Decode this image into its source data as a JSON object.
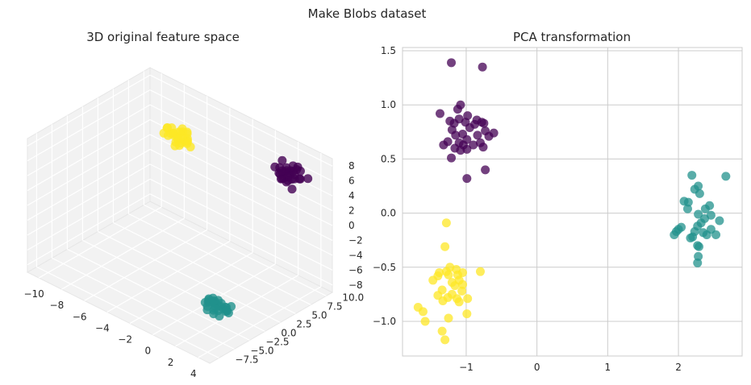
{
  "figure": {
    "title": "Make Blobs dataset"
  },
  "colors": {
    "cluster0": "#440154",
    "cluster1": "#21918c",
    "cluster2": "#fde725",
    "grid": "#cccccc",
    "pane": "#f2f2f2"
  },
  "chart_data": [
    {
      "type": "scatter",
      "projection": "3d",
      "title": "3D original feature space",
      "grid": true,
      "xticks": [
        "−10",
        "−8",
        "−6",
        "−4",
        "−2",
        "0",
        "2",
        "4"
      ],
      "yticks": [
        "−7.5",
        "−5.0",
        "−2.5",
        "0.0",
        "2.5",
        "5.0",
        "7.5",
        "10.0"
      ],
      "zticks": [
        "−8",
        "−6",
        "−4",
        "−2",
        "0",
        "2",
        "4",
        "6",
        "8"
      ],
      "xlim": [
        -11,
        5
      ],
      "ylim": [
        -9,
        11
      ],
      "zlim": [
        -9,
        9
      ],
      "series": [
        {
          "cluster": 0,
          "points": [
            [
              2.6,
              8.0,
              7.0
            ],
            [
              3.0,
              8.3,
              7.8
            ],
            [
              2.2,
              7.5,
              6.6
            ],
            [
              2.8,
              7.9,
              6.9
            ],
            [
              3.4,
              8.6,
              6.2
            ],
            [
              2.0,
              7.2,
              7.4
            ],
            [
              3.1,
              8.1,
              7.2
            ],
            [
              2.5,
              7.7,
              6.0
            ],
            [
              3.6,
              8.4,
              7.5
            ],
            [
              2.3,
              8.2,
              6.5
            ],
            [
              2.9,
              7.4,
              7.9
            ],
            [
              3.3,
              8.0,
              6.4
            ],
            [
              2.1,
              7.8,
              7.1
            ],
            [
              2.7,
              8.5,
              6.8
            ],
            [
              3.5,
              7.6,
              7.3
            ],
            [
              2.4,
              7.3,
              6.7
            ],
            [
              3.2,
              8.7,
              7.6
            ],
            [
              2.6,
              7.1,
              6.3
            ],
            [
              3.0,
              8.9,
              7.0
            ],
            [
              2.8,
              7.6,
              5.8
            ],
            [
              3.7,
              8.2,
              6.6
            ],
            [
              2.2,
              8.0,
              5.6
            ],
            [
              3.4,
              7.4,
              5.4
            ],
            [
              2.9,
              8.3,
              5.9
            ],
            [
              2.5,
              8.8,
              6.1
            ],
            [
              4.2,
              8.5,
              6.9
            ],
            [
              2.0,
              8.4,
              7.7
            ],
            [
              3.1,
              7.2,
              6.9
            ],
            [
              2.4,
              8.6,
              5.2
            ],
            [
              2.7,
              7.0,
              7.5
            ]
          ]
        },
        {
          "cluster": 1,
          "points": [
            [
              1.6,
              -2.0,
              -6.8
            ],
            [
              2.0,
              -1.7,
              -7.1
            ],
            [
              1.3,
              -2.3,
              -6.5
            ],
            [
              2.4,
              -1.5,
              -7.4
            ],
            [
              1.8,
              -2.2,
              -7.0
            ],
            [
              1.1,
              -1.9,
              -6.7
            ],
            [
              2.2,
              -2.4,
              -7.2
            ],
            [
              1.5,
              -1.6,
              -6.9
            ],
            [
              2.7,
              -2.0,
              -6.6
            ],
            [
              1.9,
              -2.6,
              -7.3
            ],
            [
              1.2,
              -2.1,
              -7.0
            ],
            [
              2.5,
              -1.8,
              -6.8
            ],
            [
              1.7,
              -2.5,
              -6.4
            ],
            [
              2.1,
              -1.4,
              -7.5
            ],
            [
              1.4,
              -2.7,
              -7.1
            ],
            [
              2.8,
              -2.3,
              -6.9
            ],
            [
              1.0,
              -1.8,
              -7.2
            ],
            [
              2.3,
              -2.1,
              -6.3
            ],
            [
              1.6,
              -1.3,
              -6.8
            ],
            [
              2.0,
              -2.8,
              -7.6
            ],
            [
              1.3,
              -1.6,
              -6.6
            ],
            [
              2.6,
              -1.7,
              -7.3
            ],
            [
              1.8,
              -2.4,
              -6.2
            ],
            [
              3.0,
              -2.2,
              -7.0
            ],
            [
              1.5,
              -2.9,
              -7.4
            ],
            [
              2.9,
              -1.6,
              -6.5
            ],
            [
              1.1,
              -2.5,
              -6.9
            ],
            [
              2.4,
              -2.6,
              -7.7
            ],
            [
              1.7,
              -1.5,
              -7.3
            ],
            [
              2.2,
              -2.9,
              -6.7
            ]
          ]
        },
        {
          "cluster": 2,
          "points": [
            [
              -6.5,
              7.2,
              5.0
            ],
            [
              -6.0,
              7.0,
              5.5
            ],
            [
              -7.0,
              7.5,
              4.6
            ],
            [
              -6.3,
              6.8,
              4.9
            ],
            [
              -5.8,
              7.4,
              5.8
            ],
            [
              -6.8,
              7.0,
              5.3
            ],
            [
              -6.1,
              7.6,
              4.4
            ],
            [
              -6.6,
              6.6,
              5.6
            ],
            [
              -5.6,
              7.1,
              5.1
            ],
            [
              -7.2,
              7.3,
              4.8
            ],
            [
              -6.4,
              7.8,
              5.4
            ],
            [
              -6.9,
              6.9,
              6.0
            ],
            [
              -5.9,
              7.5,
              4.7
            ],
            [
              -6.2,
              7.0,
              5.9
            ],
            [
              -6.7,
              7.7,
              5.2
            ],
            [
              -5.5,
              6.8,
              5.0
            ],
            [
              -7.4,
              7.1,
              5.5
            ],
            [
              -6.0,
              6.5,
              4.5
            ],
            [
              -6.5,
              7.9,
              5.7
            ],
            [
              -6.3,
              7.3,
              4.2
            ],
            [
              -7.1,
              6.7,
              4.9
            ],
            [
              -5.7,
              7.2,
              6.2
            ],
            [
              -6.8,
              7.4,
              3.9
            ],
            [
              -6.2,
              6.6,
              5.3
            ],
            [
              -5.3,
              7.0,
              4.6
            ],
            [
              -7.6,
              7.5,
              5.2
            ],
            [
              -6.6,
              6.9,
              3.8
            ],
            [
              -6.0,
              7.8,
              4.8
            ],
            [
              -7.8,
              7.3,
              4.4
            ],
            [
              -5.9,
              6.4,
              5.6
            ]
          ]
        }
      ]
    },
    {
      "type": "scatter",
      "title": "PCA transformation",
      "grid": true,
      "xlim": [
        -1.9,
        2.9
      ],
      "ylim": [
        -1.32,
        1.53
      ],
      "xticks": [
        -1,
        0,
        1,
        2
      ],
      "yticks": [
        -1.0,
        -0.5,
        0.0,
        0.5,
        1.0,
        1.5
      ],
      "xtick_labels": [
        "−1",
        "0",
        "1",
        "2"
      ],
      "ytick_labels": [
        "−1.0",
        "−0.5",
        "0.0",
        "0.5",
        "1.0",
        "1.5"
      ],
      "series": [
        {
          "cluster": 0,
          "points": [
            [
              -1.21,
              1.39
            ],
            [
              -0.77,
              1.35
            ],
            [
              -1.08,
              1.0
            ],
            [
              -1.12,
              0.96
            ],
            [
              -1.37,
              0.92
            ],
            [
              -0.98,
              0.9
            ],
            [
              -1.1,
              0.87
            ],
            [
              -0.85,
              0.86
            ],
            [
              -1.23,
              0.85
            ],
            [
              -1.01,
              0.84
            ],
            [
              -0.78,
              0.84
            ],
            [
              -0.75,
              0.83
            ],
            [
              -1.17,
              0.83
            ],
            [
              -0.88,
              0.82
            ],
            [
              -0.95,
              0.79
            ],
            [
              -1.2,
              0.77
            ],
            [
              -0.73,
              0.76
            ],
            [
              -0.61,
              0.74
            ],
            [
              -1.05,
              0.73
            ],
            [
              -1.15,
              0.72
            ],
            [
              -0.84,
              0.72
            ],
            [
              -0.68,
              0.71
            ],
            [
              -0.99,
              0.68
            ],
            [
              -1.26,
              0.66
            ],
            [
              -0.8,
              0.65
            ],
            [
              -1.1,
              0.65
            ],
            [
              -0.9,
              0.63
            ],
            [
              -1.32,
              0.63
            ],
            [
              -1.04,
              0.63
            ],
            [
              -0.76,
              0.61
            ],
            [
              -1.16,
              0.6
            ],
            [
              -0.99,
              0.59
            ],
            [
              -1.08,
              0.58
            ],
            [
              -1.21,
              0.51
            ],
            [
              -0.73,
              0.4
            ],
            [
              -0.99,
              0.32
            ]
          ]
        },
        {
          "cluster": 1,
          "points": [
            [
              2.67,
              0.34
            ],
            [
              2.19,
              0.35
            ],
            [
              2.23,
              0.22
            ],
            [
              2.28,
              0.25
            ],
            [
              2.3,
              0.18
            ],
            [
              2.08,
              0.11
            ],
            [
              2.14,
              0.1
            ],
            [
              2.13,
              0.04
            ],
            [
              2.28,
              -0.01
            ],
            [
              2.44,
              0.07
            ],
            [
              2.38,
              0.04
            ],
            [
              2.46,
              -0.02
            ],
            [
              2.37,
              -0.05
            ],
            [
              2.58,
              -0.07
            ],
            [
              2.32,
              -0.09
            ],
            [
              2.04,
              -0.13
            ],
            [
              2.0,
              -0.15
            ],
            [
              2.27,
              -0.12
            ],
            [
              2.46,
              -0.15
            ],
            [
              2.23,
              -0.17
            ],
            [
              2.35,
              -0.18
            ],
            [
              1.97,
              -0.17
            ],
            [
              1.94,
              -0.2
            ],
            [
              2.53,
              -0.2
            ],
            [
              2.4,
              -0.2
            ],
            [
              2.17,
              -0.23
            ],
            [
              2.2,
              -0.22
            ],
            [
              2.27,
              -0.3
            ],
            [
              2.29,
              -0.31
            ],
            [
              2.28,
              -0.4
            ],
            [
              2.27,
              -0.46
            ]
          ]
        },
        {
          "cluster": 2,
          "points": [
            [
              -1.28,
              -0.09
            ],
            [
              -1.3,
              -0.31
            ],
            [
              -1.23,
              -0.5
            ],
            [
              -1.14,
              -0.52
            ],
            [
              -1.38,
              -0.55
            ],
            [
              -1.28,
              -0.54
            ],
            [
              -1.05,
              -0.55
            ],
            [
              -1.12,
              -0.57
            ],
            [
              -0.8,
              -0.54
            ],
            [
              -1.25,
              -0.57
            ],
            [
              -1.4,
              -0.58
            ],
            [
              -1.47,
              -0.62
            ],
            [
              -1.1,
              -0.62
            ],
            [
              -1.2,
              -0.64
            ],
            [
              -1.05,
              -0.66
            ],
            [
              -1.16,
              -0.67
            ],
            [
              -1.34,
              -0.71
            ],
            [
              -1.06,
              -0.72
            ],
            [
              -1.2,
              -0.75
            ],
            [
              -1.4,
              -0.76
            ],
            [
              -1.26,
              -0.78
            ],
            [
              -1.13,
              -0.79
            ],
            [
              -0.98,
              -0.79
            ],
            [
              -1.33,
              -0.81
            ],
            [
              -1.1,
              -0.82
            ],
            [
              -1.68,
              -0.87
            ],
            [
              -1.61,
              -0.91
            ],
            [
              -0.99,
              -0.93
            ],
            [
              -1.25,
              -0.97
            ],
            [
              -1.58,
              -1.0
            ],
            [
              -1.34,
              -1.09
            ],
            [
              -1.3,
              -1.17
            ]
          ]
        }
      ]
    }
  ]
}
